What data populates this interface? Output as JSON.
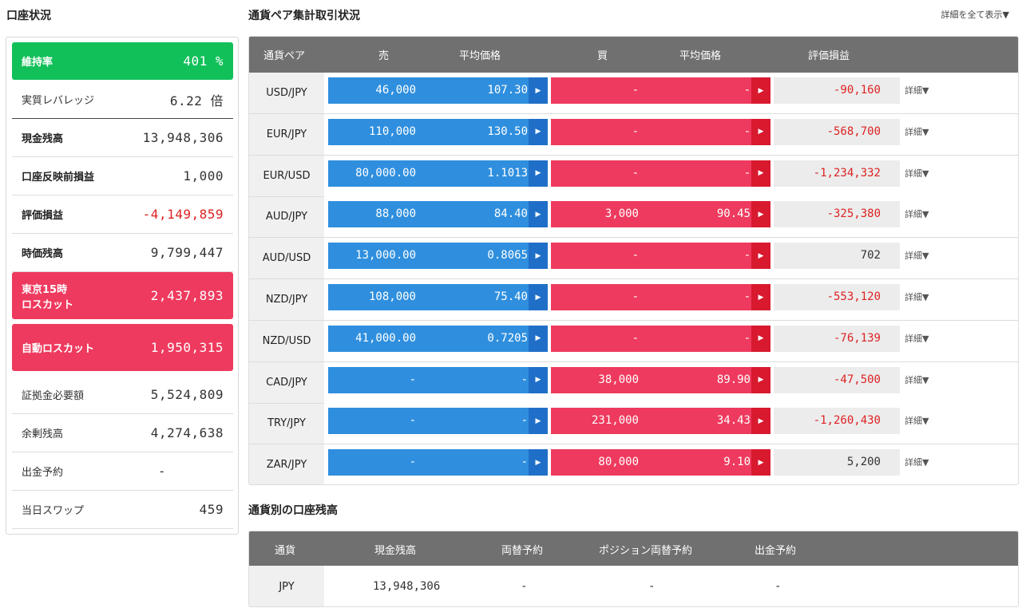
{
  "account": {
    "title": "口座状況",
    "rows": [
      {
        "label": "維持率",
        "value": "401 %",
        "style": "green"
      },
      {
        "label": "実質レバレッジ",
        "value": "6.22 倍",
        "style": "plain"
      },
      {
        "label": "現金残高",
        "value": "13,948,306",
        "style": "bold"
      },
      {
        "label": "口座反映前損益",
        "value": "1,000",
        "style": "bold"
      },
      {
        "label": "評価損益",
        "value": "-4,149,859",
        "style": "bold-red"
      },
      {
        "label": "時価残高",
        "value": "9,799,447",
        "style": "bold"
      },
      {
        "label": "東京15時\nロスカット",
        "value": "2,437,893",
        "style": "pink"
      },
      {
        "label": "自動ロスカット",
        "value": "1,950,315",
        "style": "pink"
      },
      {
        "label": "証拠金必要額",
        "value": "5,524,809",
        "style": "plain"
      },
      {
        "label": "余剰残高",
        "value": "4,274,638",
        "style": "plain"
      },
      {
        "label": "出金予約",
        "value": "-",
        "style": "plain"
      },
      {
        "label": "当日スワップ",
        "value": "459",
        "style": "plain"
      }
    ]
  },
  "pairs_section": {
    "title": "通貨ペア集計取引状況",
    "expand_all": "詳細を全て表示▼",
    "headers": {
      "pair": "通貨ペア",
      "sell": "売",
      "sell_price": "平均価格",
      "buy": "買",
      "buy_price": "平均価格",
      "pl": "評価損益"
    },
    "detail_label": "詳細▼",
    "rows": [
      {
        "pair": "USD/JPY",
        "sell": "46,000",
        "sell_price": "107.30",
        "buy": "-",
        "buy_price": "-",
        "pl": "-90,160",
        "negative": true
      },
      {
        "pair": "EUR/JPY",
        "sell": "110,000",
        "sell_price": "130.50",
        "buy": "-",
        "buy_price": "-",
        "pl": "-568,700",
        "negative": true
      },
      {
        "pair": "EUR/USD",
        "sell": "80,000.00",
        "sell_price": "1.1013",
        "buy": "-",
        "buy_price": "-",
        "pl": "-1,234,332",
        "negative": true
      },
      {
        "pair": "AUD/JPY",
        "sell": "88,000",
        "sell_price": "84.40",
        "buy": "3,000",
        "buy_price": "90.45",
        "pl": "-325,380",
        "negative": true
      },
      {
        "pair": "AUD/USD",
        "sell": "13,000.00",
        "sell_price": "0.8065",
        "buy": "-",
        "buy_price": "-",
        "pl": "702",
        "negative": false
      },
      {
        "pair": "NZD/JPY",
        "sell": "108,000",
        "sell_price": "75.40",
        "buy": "-",
        "buy_price": "-",
        "pl": "-553,120",
        "negative": true
      },
      {
        "pair": "NZD/USD",
        "sell": "41,000.00",
        "sell_price": "0.7205",
        "buy": "-",
        "buy_price": "-",
        "pl": "-76,139",
        "negative": true
      },
      {
        "pair": "CAD/JPY",
        "sell": "-",
        "sell_price": "-",
        "buy": "38,000",
        "buy_price": "89.90",
        "pl": "-47,500",
        "negative": true
      },
      {
        "pair": "TRY/JPY",
        "sell": "-",
        "sell_price": "-",
        "buy": "231,000",
        "buy_price": "34.43",
        "pl": "-1,260,430",
        "negative": true
      },
      {
        "pair": "ZAR/JPY",
        "sell": "-",
        "sell_price": "-",
        "buy": "80,000",
        "buy_price": "9.10",
        "pl": "5,200",
        "negative": false
      }
    ]
  },
  "currency_section": {
    "title": "通貨別の口座残高",
    "headers": {
      "currency": "通貨",
      "cash": "現金残高",
      "exchange": "両替予約",
      "pos_exchange": "ポジション両替予約",
      "withdraw": "出金予約"
    },
    "rows": [
      {
        "currency": "JPY",
        "cash": "13,948,306",
        "exchange": "-",
        "pos_exchange": "-",
        "withdraw": "-"
      }
    ]
  },
  "colors": {
    "sell": "#2f8fde",
    "buy": "#ee3a5e",
    "green": "#12c05a",
    "negative": "#dd2222"
  }
}
